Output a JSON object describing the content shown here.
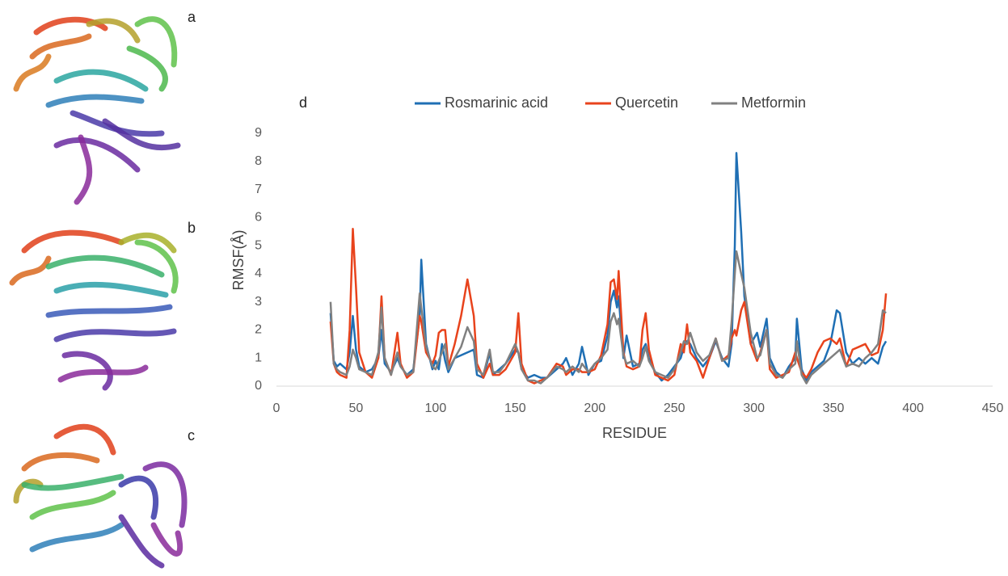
{
  "panels": {
    "labels": [
      "a",
      "b",
      "c"
    ]
  },
  "chart_data": {
    "type": "line",
    "panel_label": "d",
    "x_label": "RESIDUE",
    "y_label": "RMSF(Å)",
    "xlim": [
      0,
      450
    ],
    "ylim": [
      0,
      9
    ],
    "xticks": [
      0,
      50,
      100,
      150,
      200,
      250,
      300,
      350,
      400,
      450
    ],
    "yticks": [
      0,
      1,
      2,
      3,
      4,
      5,
      6,
      7,
      8,
      9
    ],
    "grid": false,
    "legend": "top",
    "x": [
      34,
      36,
      38,
      40,
      44,
      46,
      48,
      50,
      52,
      56,
      60,
      64,
      66,
      68,
      72,
      76,
      78,
      82,
      86,
      90,
      91,
      94,
      98,
      100,
      102,
      104,
      106,
      108,
      112,
      116,
      120,
      124,
      126,
      130,
      134,
      136,
      140,
      144,
      150,
      152,
      154,
      158,
      162,
      166,
      170,
      176,
      180,
      182,
      186,
      190,
      192,
      196,
      200,
      204,
      208,
      210,
      212,
      214,
      215,
      218,
      220,
      224,
      228,
      230,
      232,
      234,
      238,
      242,
      246,
      250,
      254,
      256,
      258,
      260,
      264,
      268,
      272,
      276,
      280,
      284,
      286,
      288,
      289,
      292,
      294,
      298,
      302,
      304,
      308,
      310,
      314,
      318,
      322,
      326,
      327,
      330,
      333,
      336,
      340,
      344,
      348,
      352,
      354,
      358,
      362,
      366,
      370,
      374,
      378,
      381,
      383
    ],
    "series": [
      {
        "name": "Rosmarinic acid",
        "color": "#1f6fb4",
        "values": [
          2.6,
          0.9,
          0.7,
          0.8,
          0.6,
          1.2,
          2.5,
          1.3,
          0.7,
          0.5,
          0.6,
          1.0,
          2.0,
          0.8,
          0.5,
          1.0,
          0.7,
          0.4,
          0.6,
          2.5,
          4.5,
          1.5,
          0.6,
          0.9,
          0.6,
          1.5,
          0.9,
          0.5,
          1.0,
          1.1,
          1.2,
          1.3,
          0.4,
          0.3,
          1.2,
          0.4,
          0.6,
          0.8,
          1.3,
          1.2,
          0.6,
          0.3,
          0.4,
          0.3,
          0.3,
          0.6,
          0.8,
          1.0,
          0.4,
          0.8,
          1.4,
          0.4,
          0.8,
          0.9,
          1.8,
          3.0,
          3.4,
          2.8,
          3.2,
          1.0,
          1.8,
          0.7,
          0.8,
          1.3,
          1.5,
          1.0,
          0.5,
          0.2,
          0.4,
          0.7,
          1.0,
          1.4,
          1.6,
          1.5,
          1.0,
          0.7,
          1.0,
          1.6,
          1.0,
          0.7,
          1.5,
          5.0,
          8.3,
          5.5,
          3.2,
          1.5,
          1.9,
          1.4,
          2.4,
          1.0,
          0.5,
          0.3,
          0.7,
          1.0,
          2.4,
          0.6,
          0.2,
          0.5,
          0.7,
          0.9,
          1.5,
          2.7,
          2.6,
          1.2,
          0.8,
          1.0,
          0.8,
          1.0,
          0.8,
          1.4,
          1.6
        ]
      },
      {
        "name": "Quercetin",
        "color": "#e8431c",
        "values": [
          2.3,
          0.8,
          0.5,
          0.4,
          0.3,
          2.0,
          5.6,
          3.5,
          1.2,
          0.5,
          0.3,
          1.0,
          3.2,
          1.0,
          0.4,
          1.9,
          0.8,
          0.3,
          0.5,
          2.5,
          2.3,
          1.2,
          0.8,
          1.1,
          1.9,
          2.0,
          2.0,
          0.7,
          1.5,
          2.5,
          3.8,
          2.5,
          0.8,
          0.3,
          0.8,
          0.4,
          0.4,
          0.6,
          1.2,
          2.6,
          0.8,
          0.2,
          0.1,
          0.2,
          0.3,
          0.8,
          0.7,
          0.4,
          0.6,
          0.6,
          0.5,
          0.5,
          0.6,
          1.1,
          2.2,
          3.7,
          3.8,
          3.1,
          4.1,
          1.2,
          0.7,
          0.6,
          0.7,
          2.0,
          2.6,
          1.3,
          0.4,
          0.3,
          0.2,
          0.4,
          1.5,
          1.2,
          2.2,
          1.2,
          0.9,
          0.3,
          1.0,
          1.7,
          0.9,
          1.1,
          1.7,
          2.0,
          1.8,
          2.7,
          3.0,
          1.5,
          0.9,
          1.2,
          2.0,
          0.6,
          0.3,
          0.4,
          0.5,
          1.2,
          1.0,
          0.5,
          0.3,
          0.6,
          1.2,
          1.6,
          1.7,
          1.5,
          1.7,
          0.7,
          1.3,
          1.4,
          1.5,
          1.1,
          1.2,
          2.0,
          3.3
        ]
      },
      {
        "name": "Metformin",
        "color": "#808080",
        "values": [
          3.0,
          0.8,
          0.6,
          0.5,
          0.4,
          0.7,
          1.3,
          1.0,
          0.6,
          0.5,
          0.4,
          1.2,
          2.8,
          1.0,
          0.4,
          1.2,
          0.7,
          0.4,
          0.5,
          3.3,
          2.8,
          1.4,
          0.7,
          0.6,
          0.9,
          1.2,
          1.5,
          0.6,
          1.0,
          1.4,
          2.1,
          1.6,
          0.6,
          0.4,
          1.3,
          0.5,
          0.5,
          0.8,
          1.5,
          1.2,
          0.6,
          0.2,
          0.2,
          0.1,
          0.3,
          0.7,
          0.6,
          0.5,
          0.7,
          0.5,
          0.8,
          0.5,
          0.8,
          1.0,
          1.3,
          2.3,
          2.6,
          2.2,
          2.4,
          1.1,
          0.8,
          0.9,
          0.7,
          1.0,
          1.4,
          0.9,
          0.5,
          0.4,
          0.3,
          0.6,
          1.2,
          1.6,
          1.5,
          1.9,
          1.2,
          0.9,
          1.1,
          1.7,
          0.9,
          1.0,
          2.3,
          4.0,
          4.8,
          4.0,
          3.5,
          1.9,
          1.0,
          1.1,
          2.0,
          0.8,
          0.4,
          0.3,
          0.6,
          0.8,
          1.6,
          0.4,
          0.1,
          0.4,
          0.6,
          0.8,
          1.0,
          1.2,
          1.3,
          0.7,
          0.8,
          0.7,
          1.0,
          1.2,
          1.5,
          2.7,
          2.6
        ]
      }
    ]
  }
}
